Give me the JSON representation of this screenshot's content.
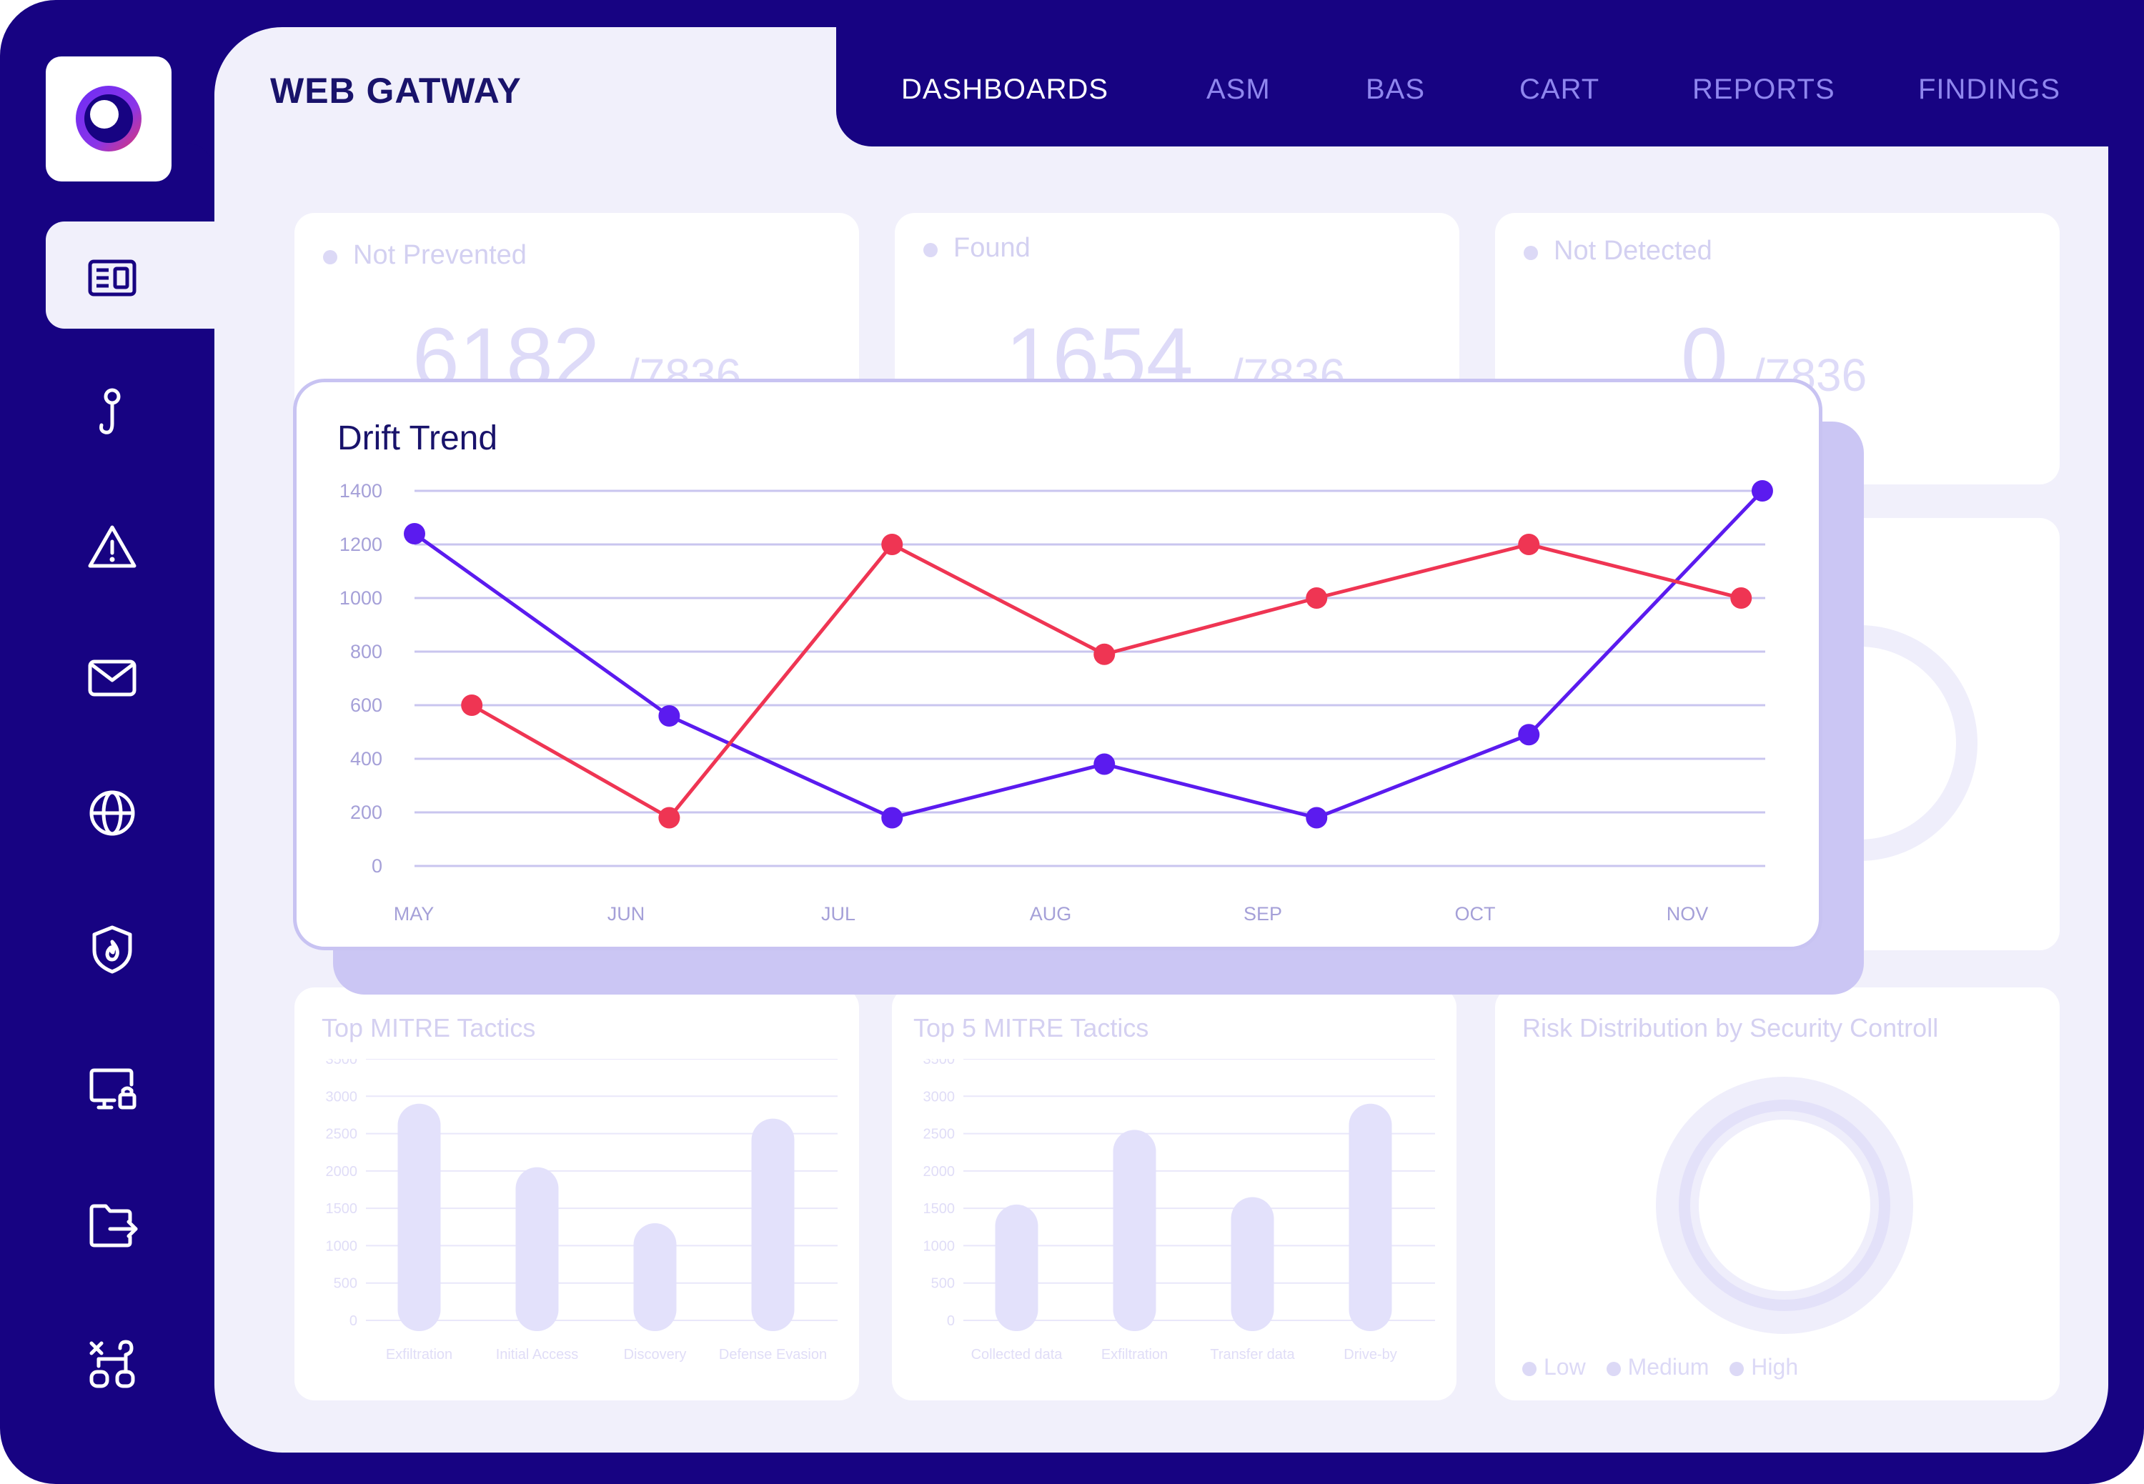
{
  "app": {
    "title": "WEB GATWAY"
  },
  "nav": {
    "items": [
      {
        "label": "DASHBOARDS",
        "active": true
      },
      {
        "label": "ASM",
        "active": false
      },
      {
        "label": "BAS",
        "active": false
      },
      {
        "label": "CART",
        "active": false
      },
      {
        "label": "REPORTS",
        "active": false
      },
      {
        "label": "FINDINGS",
        "active": false
      }
    ]
  },
  "sidebar": {
    "icons": [
      "dashboard-icon",
      "hook-icon",
      "warning-icon",
      "mail-icon",
      "globe-icon",
      "shield-icon",
      "monitor-lock-icon",
      "folder-export-icon",
      "workflow-icon"
    ]
  },
  "stats": [
    {
      "label": "Not Prevented",
      "value": "6182",
      "total": "/7836"
    },
    {
      "label": "Found",
      "value": "1654",
      "total": "/7836"
    },
    {
      "label": "Not Detected",
      "value": "0",
      "total": "/7836"
    }
  ],
  "colors": {
    "frame": "#170382",
    "background": "#f1f0fb",
    "purple_series": "#5b1bef",
    "red_series": "#ef3553"
  },
  "chart_data": [
    {
      "type": "line",
      "title": "Drift Trend",
      "categories": [
        "MAY",
        "JUN",
        "JUL",
        "AUG",
        "SEP",
        "OCT",
        "NOV"
      ],
      "yticks": [
        "1400",
        "1200",
        "1000",
        "800",
        "600",
        "400",
        "200",
        "0"
      ],
      "ylim": [
        0,
        1400
      ],
      "grid": true,
      "series": [
        {
          "color": "#5b1bef",
          "points": [
            [
              0,
              1240
            ],
            [
              1.2,
              560
            ],
            [
              2.25,
              180
            ],
            [
              3.25,
              380
            ],
            [
              4.25,
              180
            ],
            [
              5.25,
              490
            ],
            [
              6.35,
              1400
            ]
          ]
        },
        {
          "color": "#ef3553",
          "points": [
            [
              0.27,
              600
            ],
            [
              1.2,
              180
            ],
            [
              2.25,
              1200
            ],
            [
              3.25,
              790
            ],
            [
              4.25,
              1000
            ],
            [
              5.25,
              1200
            ],
            [
              6.25,
              1000
            ]
          ]
        }
      ]
    },
    {
      "type": "bar",
      "title": "Top MITRE Tactics",
      "categories": [
        "Exfiltration",
        "Initial Access",
        "Discovery",
        "Defense Evasion"
      ],
      "values": [
        2900,
        2050,
        1300,
        2700
      ],
      "yticks": [
        "3500",
        "3000",
        "2500",
        "2000",
        "1500",
        "1000",
        "500",
        "0"
      ],
      "ylim": [
        0,
        3500
      ]
    },
    {
      "type": "bar",
      "title": "Top 5  MITRE Tactics",
      "categories": [
        "Collected data",
        "Exfiltration",
        "Transfer data",
        "Drive-by"
      ],
      "values": [
        1550,
        2550,
        1650,
        2900
      ],
      "yticks": [
        "3500",
        "3000",
        "2500",
        "2000",
        "1500",
        "1000",
        "500",
        "0"
      ],
      "ylim": [
        0,
        3500
      ]
    },
    {
      "type": "pie",
      "title": "Risk Distribution by Security Controll",
      "legend": [
        "Low",
        "Medium",
        "High"
      ]
    }
  ]
}
